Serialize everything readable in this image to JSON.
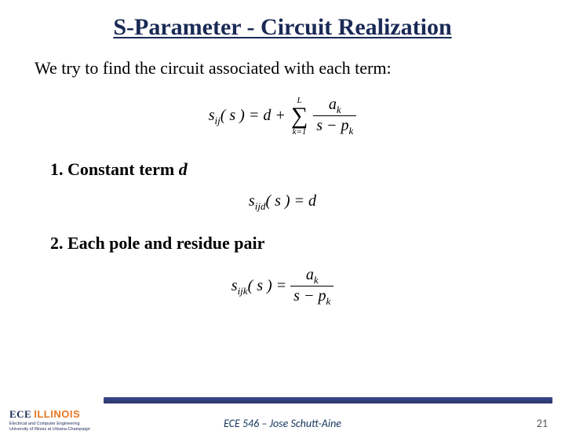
{
  "title": "S-Parameter - Circuit Realization",
  "intro": "We try to find the circuit associated with each term:",
  "section1": {
    "label": "1. Constant term ",
    "ital": "d"
  },
  "section2": {
    "label": "2. Each pole and residue pair"
  },
  "eq1": {
    "lhs_base": "s",
    "lhs_sub": "ij",
    "arg": "( s ) = d + ",
    "sum_top": "L",
    "sum_bot": "k=1",
    "num_base": "a",
    "num_sub": "k",
    "den_l": "s − p",
    "den_sub": "k"
  },
  "eq2": {
    "lhs_base": "s",
    "lhs_sub": "ijd",
    "rhs": "( s ) = d"
  },
  "eq3": {
    "lhs_base": "s",
    "lhs_sub": "ijk",
    "arg": "( s ) = ",
    "num_base": "a",
    "num_sub": "k",
    "den_l": "s − p",
    "den_sub": "k"
  },
  "footer": {
    "course": "ECE 546 – Jose Schutt-Aine",
    "page": "21",
    "logo_ece": "ECE",
    "logo_ill": "ILLINOIS",
    "logo_line1": "Electrical and Computer Engineering",
    "logo_line2": "University of Illinois at Urbana-Champaign"
  },
  "colors": {
    "title": "#1a2a56",
    "accent": "#e87722",
    "bar_top": "#3b4a8f",
    "bar_bot": "#2a3668",
    "footer_text": "#17365d"
  }
}
